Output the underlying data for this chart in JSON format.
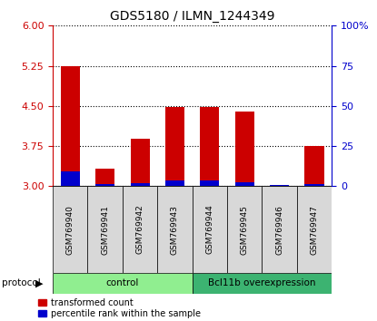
{
  "title": "GDS5180 / ILMN_1244349",
  "samples": [
    "GSM769940",
    "GSM769941",
    "GSM769942",
    "GSM769943",
    "GSM769944",
    "GSM769945",
    "GSM769946",
    "GSM769947"
  ],
  "red_values": [
    5.25,
    3.33,
    3.88,
    4.48,
    4.48,
    4.4,
    3.0,
    3.75
  ],
  "blue_values": [
    0.27,
    0.04,
    0.05,
    0.1,
    0.1,
    0.08,
    0.03,
    0.04
  ],
  "y_min": 3.0,
  "y_max": 6.0,
  "y_ticks_left": [
    3.0,
    3.75,
    4.5,
    5.25,
    6.0
  ],
  "y_ticks_right": [
    0,
    25,
    50,
    75,
    100
  ],
  "y_right_labels": [
    "0",
    "25",
    "50",
    "75",
    "100%"
  ],
  "groups": [
    {
      "label": "control",
      "start": 0,
      "end": 3,
      "color": "#90ee90"
    },
    {
      "label": "Bcl11b overexpression",
      "start": 4,
      "end": 7,
      "color": "#3cb371"
    }
  ],
  "protocol_label": "protocol",
  "legend_red": "transformed count",
  "legend_blue": "percentile rank within the sample",
  "bar_color_red": "#cc0000",
  "bar_color_blue": "#0000cc",
  "bg_color": "#d8d8d8",
  "left_tick_color": "#cc0000",
  "right_tick_color": "#0000cc",
  "bar_width": 0.55
}
